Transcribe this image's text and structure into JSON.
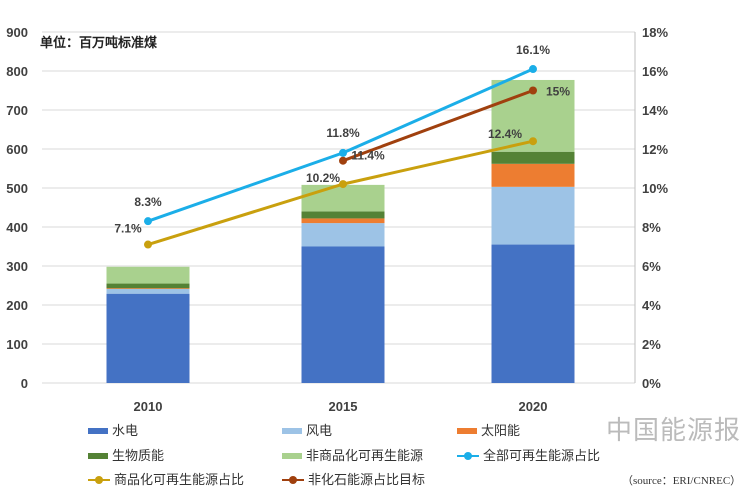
{
  "chart_data": {
    "type": "bar",
    "stacked": true,
    "subtitle": "单位：百万吨标准煤",
    "categories": [
      "2010",
      "2015",
      "2020"
    ],
    "ylim": [
      0,
      900
    ],
    "y2lim": [
      0,
      18
    ],
    "yticks": [
      0,
      100,
      200,
      300,
      400,
      500,
      600,
      700,
      800,
      900
    ],
    "y2ticks": [
      "0%",
      "2%",
      "4%",
      "6%",
      "8%",
      "10%",
      "12%",
      "14%",
      "16%",
      "18%"
    ],
    "grid": true,
    "legend_placement": "bottom",
    "series": [
      {
        "name": "水电",
        "type": "bar",
        "color": "#4472C4",
        "values": [
          229,
          350,
          355
        ]
      },
      {
        "name": "风电",
        "type": "bar",
        "color": "#9DC3E6",
        "values": [
          12,
          60,
          148
        ]
      },
      {
        "name": "太阳能",
        "type": "bar",
        "color": "#ED7D31",
        "values": [
          2,
          12,
          59
        ]
      },
      {
        "name": "生物质能",
        "type": "bar",
        "color": "#548235",
        "values": [
          12,
          18,
          31
        ]
      },
      {
        "name": "非商品化可再生能源",
        "type": "bar",
        "color": "#A9D18E",
        "values": [
          43,
          68,
          184
        ]
      },
      {
        "name": "全部可再生能源占比",
        "type": "line",
        "axis": "right",
        "color": "#1BAEE8",
        "values": [
          8.3,
          11.8,
          16.1
        ],
        "labels": [
          "8.3%",
          "11.8%",
          "16.1%"
        ]
      },
      {
        "name": "商品化可再生能源占比",
        "type": "line",
        "axis": "right",
        "color": "#C9A00E",
        "values": [
          7.1,
          10.2,
          12.4
        ],
        "labels": [
          "7.1%",
          "10.2%",
          "12.4%"
        ]
      },
      {
        "name": "非化石能源占比目标",
        "type": "line",
        "axis": "right",
        "color": "#A0400E",
        "values": [
          null,
          11.4,
          15
        ],
        "labels": [
          null,
          "11.4%",
          "15%"
        ]
      }
    ]
  },
  "watermark": "中国能源报",
  "source": "（source：ERI/CNREC）"
}
